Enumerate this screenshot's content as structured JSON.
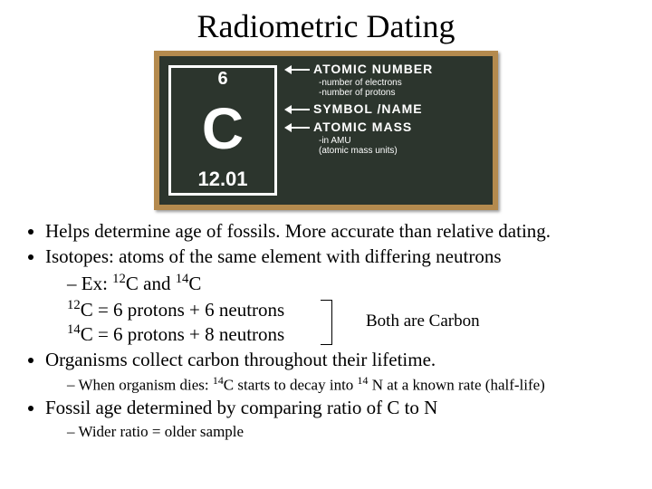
{
  "title": "Radiometric Dating",
  "chalkboard": {
    "atomic_number": "6",
    "symbol": "C",
    "atomic_mass": "12.01",
    "labels": {
      "an_head": "ATOMIC NUMBER",
      "an_sub1": "-number of electrons",
      "an_sub2": "-number of protons",
      "sym_head": "SYMBOL /NAME",
      "am_head": "ATOMIC MASS",
      "am_sub1": "-in AMU",
      "am_sub2": "(atomic mass units)"
    }
  },
  "bullets": {
    "b1": "Helps determine age of fossils.  More accurate than relative dating.",
    "b2": "Isotopes: atoms of the same element with differing neutrons",
    "b2_ex_pre": "Ex: ",
    "c12": "C",
    "and": " and ",
    "c14": "C",
    "iso1_pre": "C = 6 protons + 6 neutrons",
    "iso2_pre": "C = 6 protons + 8 neutrons",
    "both": "Both are Carbon",
    "b3": "Organisms collect carbon throughout their lifetime.",
    "b3_sub_a": "When organism dies: ",
    "b3_sub_b": "C starts to decay into ",
    "b3_sub_c": " N at a known rate (half-life)",
    "b4": "Fossil age determined by comparing ratio of C to N",
    "b4_sub": "Wider ratio = older sample"
  },
  "style": {
    "bg": "#ffffff",
    "text": "#000000",
    "board_bg": "#2c352d",
    "board_frame": "#b48a4e",
    "chalk": "#ffffff",
    "title_fontsize": 36,
    "body_fontsize": 21,
    "sub_fontsize": 17
  }
}
